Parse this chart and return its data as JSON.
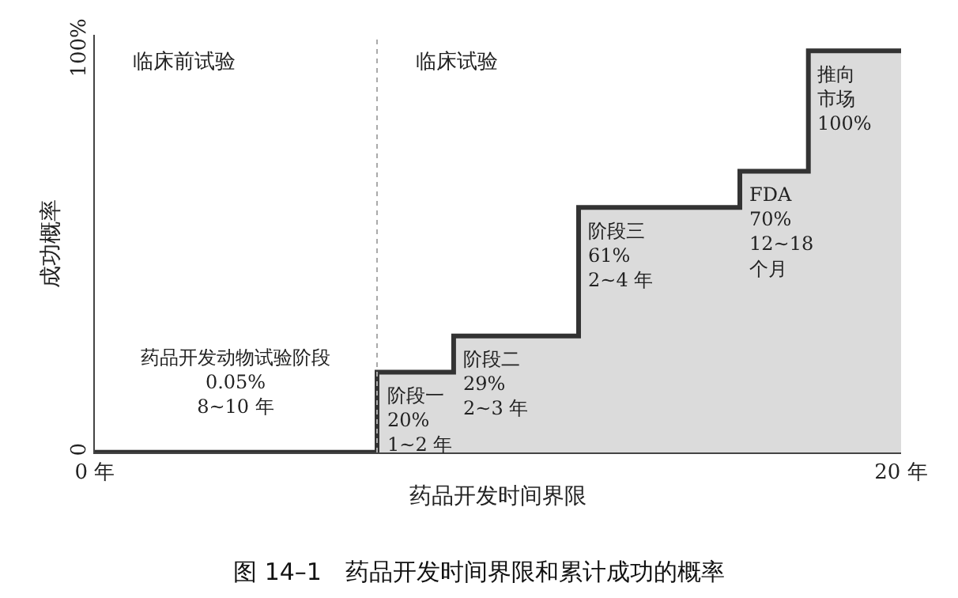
{
  "chart_data": {
    "type": "step",
    "title": "图 14–1　药品开发时间界限和累计成功的概率",
    "xlabel": "药品开发时间界限",
    "ylabel": "成功概率",
    "x": [
      0,
      7,
      8.9,
      12,
      16,
      17.7,
      20
    ],
    "series": [
      {
        "color": "#333333",
        "values": [
          0.05,
          20,
          29,
          61,
          70,
          100,
          100
        ]
      }
    ],
    "xlim": [
      0,
      20
    ],
    "xticks": [
      {
        "value": 0,
        "label": "0 年"
      },
      {
        "value": 20,
        "label": "20 年"
      }
    ],
    "ylim": [
      0,
      104
    ],
    "yticks": [
      0,
      {
        "value": 100,
        "label": "100%"
      }
    ],
    "ref_lines": [
      {
        "axis": "x",
        "value": 7,
        "label": "临床试验",
        "color": "#aaaaaa",
        "line_style": "dotted"
      }
    ],
    "annotations": [
      "临床前试验",
      {
        "text": "药品开发动物试验阶段\n0.05%\n8~10 年",
        "x": 3.5,
        "y": 0.05
      },
      {
        "text": "阶段一\n20%\n1~2 年",
        "x": 7.95,
        "y": 20
      },
      {
        "text": "阶段二\n29%\n2~3 年",
        "x": 10.45,
        "y": 29
      },
      {
        "text": "阶段三\n61%\n2~4 年",
        "x": 14,
        "y": 61
      },
      {
        "text": "FDA\n70%\n12~18\n个月",
        "x": 16.85,
        "y": 70
      },
      {
        "text": "推向市场\n100%",
        "x": 18.85,
        "y": 100
      }
    ],
    "marker": "none",
    "line_style": "solid"
  }
}
